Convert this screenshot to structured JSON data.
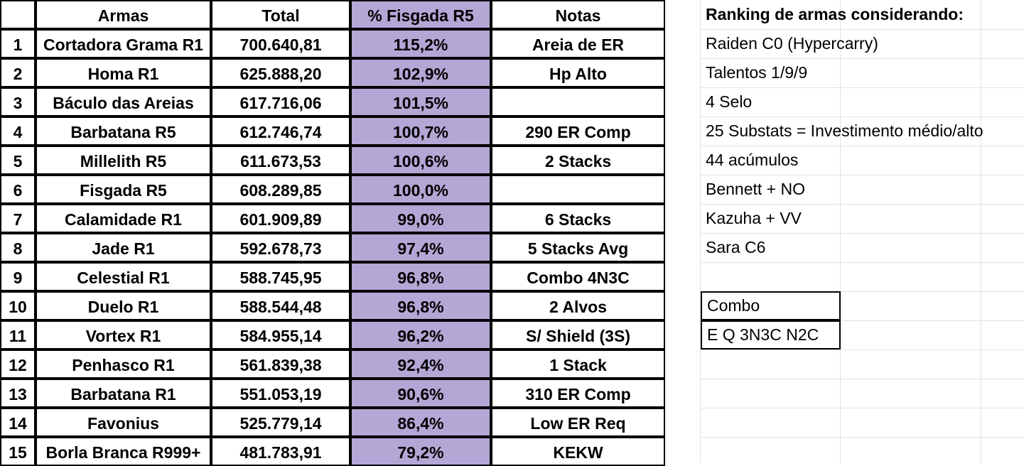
{
  "table": {
    "headers": {
      "arma": "Armas",
      "total": "Total",
      "pct": "% Fisgada R5",
      "notas": "Notas"
    },
    "rows": [
      {
        "n": "1",
        "arma": "Cortadora Grama R1",
        "total": "700.640,81",
        "pct": "115,2%",
        "notas": "Areia de ER"
      },
      {
        "n": "2",
        "arma": "Homa R1",
        "total": "625.888,20",
        "pct": "102,9%",
        "notas": "Hp Alto"
      },
      {
        "n": "3",
        "arma": "Báculo das Areias",
        "total": "617.716,06",
        "pct": "101,5%",
        "notas": ""
      },
      {
        "n": "4",
        "arma": "Barbatana R5",
        "total": "612.746,74",
        "pct": "100,7%",
        "notas": "290 ER Comp"
      },
      {
        "n": "5",
        "arma": "Millelith R5",
        "total": "611.673,53",
        "pct": "100,6%",
        "notas": "2 Stacks"
      },
      {
        "n": "6",
        "arma": "Fisgada R5",
        "total": "608.289,85",
        "pct": "100,0%",
        "notas": ""
      },
      {
        "n": "7",
        "arma": "Calamidade R1",
        "total": "601.909,89",
        "pct": "99,0%",
        "notas": "6 Stacks"
      },
      {
        "n": "8",
        "arma": "Jade R1",
        "total": "592.678,73",
        "pct": "97,4%",
        "notas": "5 Stacks Avg"
      },
      {
        "n": "9",
        "arma": "Celestial R1",
        "total": "588.745,95",
        "pct": "96,8%",
        "notas": "Combo 4N3C"
      },
      {
        "n": "10",
        "arma": "Duelo R1",
        "total": "588.544,48",
        "pct": "96,8%",
        "notas": "2 Alvos"
      },
      {
        "n": "11",
        "arma": "Vortex R1",
        "total": "584.955,14",
        "pct": "96,2%",
        "notas": "S/ Shield (3S)"
      },
      {
        "n": "12",
        "arma": "Penhasco R1",
        "total": "561.839,38",
        "pct": "92,4%",
        "notas": "1 Stack"
      },
      {
        "n": "13",
        "arma": "Barbatana R1",
        "total": "551.053,19",
        "pct": "90,6%",
        "notas": "310 ER Comp"
      },
      {
        "n": "14",
        "arma": "Favonius",
        "total": "525.779,14",
        "pct": "86,4%",
        "notas": "Low ER Req"
      },
      {
        "n": "15",
        "arma": "Borla Branca R999+",
        "total": "481.783,91",
        "pct": "79,2%",
        "notas": "KEKW"
      }
    ]
  },
  "side": {
    "title": "Ranking de armas considerando:",
    "items": [
      "Raiden C0 (Hypercarry)",
      "Talentos 1/9/9",
      "4 Selo",
      "25 Substats = Investimento médio/alto",
      "44 acúmulos",
      "Bennett + NO",
      "Kazuha + VV",
      "Sara C6"
    ],
    "combo_label": "Combo",
    "combo_value": "E Q 3N3C N2C"
  },
  "colors": {
    "highlight_column": "#b4a7d6",
    "gridline": "#e2e2e2"
  }
}
